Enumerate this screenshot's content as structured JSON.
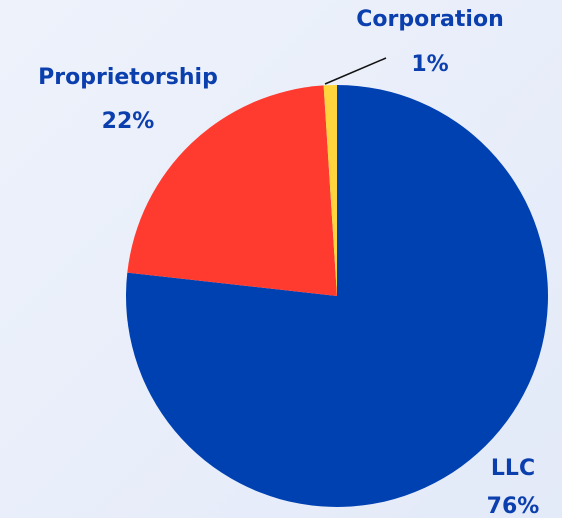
{
  "chart_data": {
    "type": "pie",
    "categories": [
      "LLC",
      "Proprietorship",
      "Corporation"
    ],
    "values": [
      76,
      22,
      1
    ],
    "value_labels": [
      "76%",
      "22%",
      "1%"
    ],
    "colors": [
      "#0041b2",
      "#ff3b2f",
      "#ffd53d"
    ]
  }
}
